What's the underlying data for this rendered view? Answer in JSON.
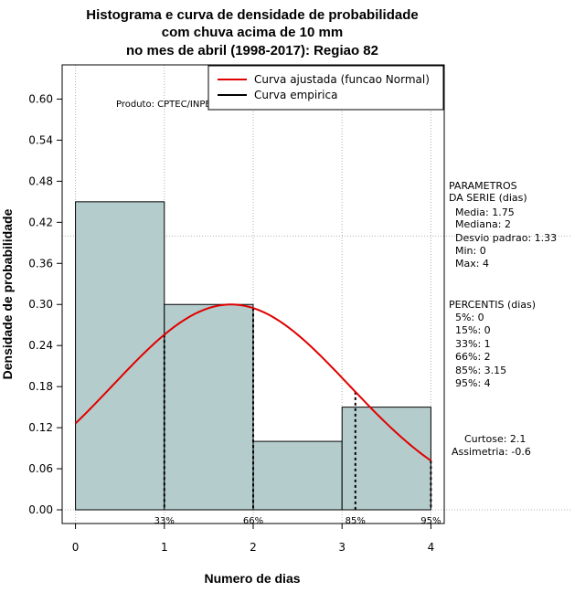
{
  "title": {
    "line1": "Histograma e curva de densidade de probabilidade",
    "line2": "com chuva acima de 10 mm",
    "line3": "no mes de abril (1998-2017): Regiao 82"
  },
  "credit": "Produto: CPTEC/INPE",
  "legend": {
    "fitted_label": "Curva ajustada (funcao Normal)",
    "empirical_label": "Curva empirica"
  },
  "parametros": {
    "header1": "PARAMETROS",
    "header2": "DA SERIE (dias)",
    "media": "Media: 1.75",
    "mediana": "Mediana: 2",
    "desvio": "Desvio padrao: 1.33",
    "min": "Min: 0",
    "max": "Max: 4"
  },
  "percentis": {
    "header": "PERCENTIS (dias)",
    "items": [
      "5%: 0",
      "15%: 0",
      "33%: 1",
      "66%: 2",
      "85%: 3.15",
      "95%: 4"
    ]
  },
  "shape": {
    "curtose": "Curtose: 2.1",
    "assimetria": "Assimetria: -0.6"
  },
  "colors": {
    "bar_fill": "#b5cccc",
    "fitted_curve": "#e00000",
    "empirical_curve": "#000000",
    "grid": "#b0b0b0"
  },
  "chart_data": {
    "type": "bar",
    "xlabel": "Numero de dias",
    "ylabel": "Densidade de probabilidade",
    "xlim": [
      -0.15,
      4.15
    ],
    "ylim": [
      -0.02,
      0.65
    ],
    "xticks": [
      "0",
      "1",
      "2",
      "3",
      "4"
    ],
    "yticks": [
      "0.00",
      "0.06",
      "0.12",
      "0.18",
      "0.24",
      "0.30",
      "0.36",
      "0.42",
      "0.48",
      "0.54",
      "0.60"
    ],
    "bins": [
      {
        "from": 0,
        "to": 1,
        "density": 0.45
      },
      {
        "from": 1,
        "to": 2,
        "density": 0.3
      },
      {
        "from": 2,
        "to": 3,
        "density": 0.1
      },
      {
        "from": 3,
        "to": 4,
        "density": 0.15
      }
    ],
    "fitted_normal": {
      "mean": 1.75,
      "sd": 1.33
    },
    "percentile_markers": [
      {
        "label": "33%",
        "x": 1
      },
      {
        "label": "66%",
        "x": 2
      },
      {
        "label": "85%",
        "x": 3.15
      },
      {
        "label": "95%",
        "x": 4
      }
    ],
    "grid": true,
    "legend_position": "top-right"
  }
}
